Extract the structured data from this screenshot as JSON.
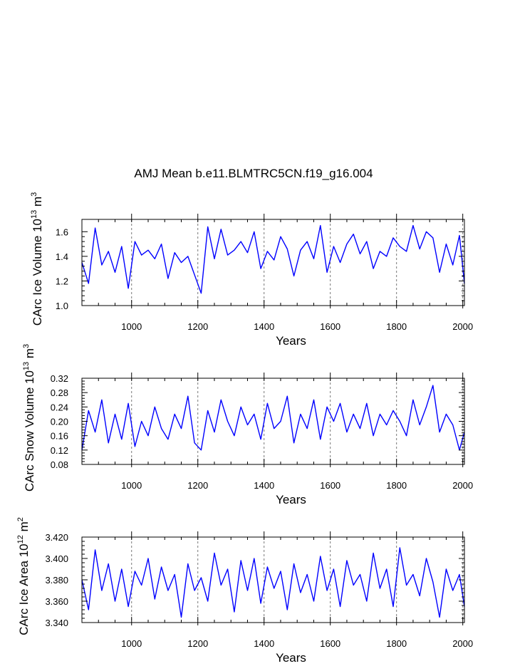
{
  "figure": {
    "title": "AMJ Mean b.e11.BLMTRC5CN.f19_g16.004"
  },
  "colors": {
    "series": "#0000ff",
    "grid": "#777777",
    "axis": "#000000"
  },
  "chart_data": [
    {
      "type": "line",
      "title": "AMJ Mean b.e11.BLMTRC5CN.f19_g16.004",
      "ylabel": "CArc Ice Volume 10",
      "ylabel_exp": "13",
      "ylabel_unit": " m",
      "ylabel_unit_exp": "3",
      "xlabel": "Years",
      "xlim": [
        850,
        2005
      ],
      "ylim": [
        1.0,
        1.7
      ],
      "x_ticks": [
        1000,
        1200,
        1400,
        1600,
        1800,
        2000
      ],
      "x_tick_labels": [
        "1000",
        "1200",
        "1400",
        "1600",
        "1800",
        "2000"
      ],
      "y_ticks": [
        1.0,
        1.2,
        1.4,
        1.6
      ],
      "y_tick_labels": [
        "1.0",
        "1.2",
        "1.4",
        "1.6"
      ],
      "grid": "vertical-dashed",
      "series": [
        {
          "name": "CArc Ice Volume",
          "x": [
            850,
            870,
            890,
            910,
            930,
            950,
            970,
            990,
            1010,
            1030,
            1050,
            1070,
            1090,
            1110,
            1130,
            1150,
            1170,
            1190,
            1210,
            1230,
            1250,
            1270,
            1290,
            1310,
            1330,
            1350,
            1370,
            1390,
            1410,
            1430,
            1450,
            1470,
            1490,
            1510,
            1530,
            1550,
            1570,
            1590,
            1610,
            1630,
            1650,
            1670,
            1690,
            1710,
            1730,
            1750,
            1770,
            1790,
            1810,
            1830,
            1850,
            1870,
            1890,
            1910,
            1930,
            1950,
            1970,
            1990,
            2005
          ],
          "values": [
            1.35,
            1.18,
            1.63,
            1.33,
            1.44,
            1.27,
            1.48,
            1.14,
            1.52,
            1.41,
            1.45,
            1.38,
            1.5,
            1.22,
            1.43,
            1.35,
            1.4,
            1.25,
            1.1,
            1.64,
            1.38,
            1.62,
            1.41,
            1.45,
            1.52,
            1.43,
            1.6,
            1.3,
            1.44,
            1.37,
            1.56,
            1.46,
            1.24,
            1.45,
            1.52,
            1.38,
            1.65,
            1.27,
            1.48,
            1.35,
            1.5,
            1.58,
            1.42,
            1.52,
            1.3,
            1.44,
            1.4,
            1.55,
            1.48,
            1.44,
            1.65,
            1.46,
            1.6,
            1.55,
            1.27,
            1.5,
            1.33,
            1.57,
            1.18
          ]
        }
      ]
    },
    {
      "type": "line",
      "ylabel": "CArc Snow Volume 10",
      "ylabel_exp": "13",
      "ylabel_unit": " m",
      "ylabel_unit_exp": "3",
      "xlabel": "Years",
      "xlim": [
        850,
        2005
      ],
      "ylim": [
        0.08,
        0.32
      ],
      "x_ticks": [
        1000,
        1200,
        1400,
        1600,
        1800,
        2000
      ],
      "x_tick_labels": [
        "1000",
        "1200",
        "1400",
        "1600",
        "1800",
        "2000"
      ],
      "y_ticks": [
        0.08,
        0.12,
        0.16,
        0.2,
        0.24,
        0.28,
        0.32
      ],
      "y_tick_labels": [
        "0.08",
        "0.12",
        "0.16",
        "0.20",
        "0.24",
        "0.28",
        "0.32"
      ],
      "grid": "vertical-dashed",
      "series": [
        {
          "name": "CArc Snow Volume",
          "x": [
            850,
            870,
            890,
            910,
            930,
            950,
            970,
            990,
            1010,
            1030,
            1050,
            1070,
            1090,
            1110,
            1130,
            1150,
            1170,
            1190,
            1210,
            1230,
            1250,
            1270,
            1290,
            1310,
            1330,
            1350,
            1370,
            1390,
            1410,
            1430,
            1450,
            1470,
            1490,
            1510,
            1530,
            1550,
            1570,
            1590,
            1610,
            1630,
            1650,
            1670,
            1690,
            1710,
            1730,
            1750,
            1770,
            1790,
            1810,
            1830,
            1850,
            1870,
            1890,
            1910,
            1930,
            1950,
            1970,
            1990,
            2005
          ],
          "values": [
            0.12,
            0.23,
            0.17,
            0.26,
            0.14,
            0.22,
            0.15,
            0.25,
            0.13,
            0.2,
            0.16,
            0.24,
            0.18,
            0.15,
            0.22,
            0.18,
            0.27,
            0.14,
            0.12,
            0.23,
            0.17,
            0.26,
            0.2,
            0.16,
            0.24,
            0.19,
            0.22,
            0.15,
            0.25,
            0.18,
            0.2,
            0.27,
            0.14,
            0.22,
            0.18,
            0.26,
            0.15,
            0.24,
            0.2,
            0.25,
            0.17,
            0.22,
            0.18,
            0.25,
            0.16,
            0.22,
            0.19,
            0.23,
            0.2,
            0.16,
            0.26,
            0.19,
            0.24,
            0.3,
            0.17,
            0.22,
            0.19,
            0.12,
            0.17
          ]
        }
      ]
    },
    {
      "type": "line",
      "ylabel": "CArc Ice Area 10",
      "ylabel_exp": "12",
      "ylabel_unit": " m",
      "ylabel_unit_exp": "2",
      "xlabel": "Years",
      "xlim": [
        850,
        2005
      ],
      "ylim": [
        3.34,
        3.42
      ],
      "x_ticks": [
        1000,
        1200,
        1400,
        1600,
        1800,
        2000
      ],
      "x_tick_labels": [
        "1000",
        "1200",
        "1400",
        "1600",
        "1800",
        "2000"
      ],
      "y_ticks": [
        3.34,
        3.36,
        3.38,
        3.4,
        3.42
      ],
      "y_tick_labels": [
        "3.340",
        "3.360",
        "3.380",
        "3.400",
        "3.420"
      ],
      "grid": "vertical-dashed",
      "series": [
        {
          "name": "CArc Ice Area",
          "x": [
            850,
            870,
            890,
            910,
            930,
            950,
            970,
            990,
            1010,
            1030,
            1050,
            1070,
            1090,
            1110,
            1130,
            1150,
            1170,
            1190,
            1210,
            1230,
            1250,
            1270,
            1290,
            1310,
            1330,
            1350,
            1370,
            1390,
            1410,
            1430,
            1450,
            1470,
            1490,
            1510,
            1530,
            1550,
            1570,
            1590,
            1610,
            1630,
            1650,
            1670,
            1690,
            1710,
            1730,
            1750,
            1770,
            1790,
            1810,
            1830,
            1850,
            1870,
            1890,
            1910,
            1930,
            1950,
            1970,
            1990,
            2005
          ],
          "values": [
            3.38,
            3.352,
            3.408,
            3.37,
            3.395,
            3.36,
            3.39,
            3.355,
            3.388,
            3.375,
            3.4,
            3.362,
            3.392,
            3.37,
            3.385,
            3.345,
            3.395,
            3.37,
            3.382,
            3.36,
            3.405,
            3.375,
            3.39,
            3.35,
            3.398,
            3.37,
            3.4,
            3.358,
            3.392,
            3.372,
            3.388,
            3.352,
            3.395,
            3.368,
            3.385,
            3.36,
            3.402,
            3.37,
            3.39,
            3.355,
            3.398,
            3.375,
            3.385,
            3.36,
            3.405,
            3.372,
            3.39,
            3.355,
            3.41,
            3.375,
            3.385,
            3.365,
            3.4,
            3.378,
            3.345,
            3.39,
            3.37,
            3.385,
            3.355
          ]
        }
      ]
    }
  ]
}
